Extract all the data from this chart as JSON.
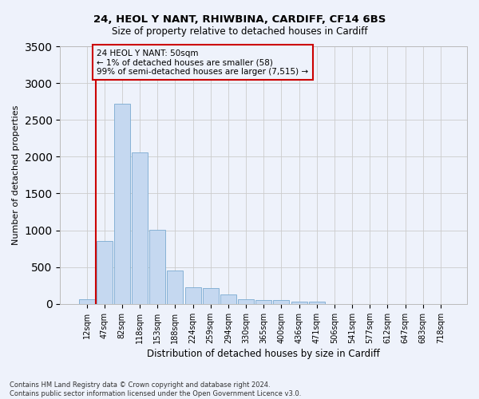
{
  "title": "24, HEOL Y NANT, RHIWBINA, CARDIFF, CF14 6BS",
  "subtitle": "Size of property relative to detached houses in Cardiff",
  "xlabel": "Distribution of detached houses by size in Cardiff",
  "ylabel": "Number of detached properties",
  "footer_line1": "Contains HM Land Registry data © Crown copyright and database right 2024.",
  "footer_line2": "Contains public sector information licensed under the Open Government Licence v3.0.",
  "annotation_title": "24 HEOL Y NANT: 50sqm",
  "annotation_line2": "← 1% of detached houses are smaller (58)",
  "annotation_line3": "99% of semi-detached houses are larger (7,515) →",
  "categories": [
    "12sqm",
    "47sqm",
    "82sqm",
    "118sqm",
    "153sqm",
    "188sqm",
    "224sqm",
    "259sqm",
    "294sqm",
    "330sqm",
    "365sqm",
    "400sqm",
    "436sqm",
    "471sqm",
    "506sqm",
    "541sqm",
    "577sqm",
    "612sqm",
    "647sqm",
    "683sqm",
    "718sqm"
  ],
  "values": [
    58,
    850,
    2720,
    2060,
    1010,
    450,
    225,
    220,
    130,
    65,
    55,
    55,
    30,
    30,
    0,
    0,
    0,
    0,
    0,
    0,
    0
  ],
  "bar_color": "#c5d8f0",
  "bar_edge_color": "#7aaad0",
  "highlight_color": "#cc0000",
  "annotation_box_color": "#cc0000",
  "background_color": "#eef2fb",
  "grid_color": "#cccccc",
  "ylim": [
    0,
    3500
  ],
  "yticks": [
    0,
    500,
    1000,
    1500,
    2000,
    2500,
    3000,
    3500
  ]
}
